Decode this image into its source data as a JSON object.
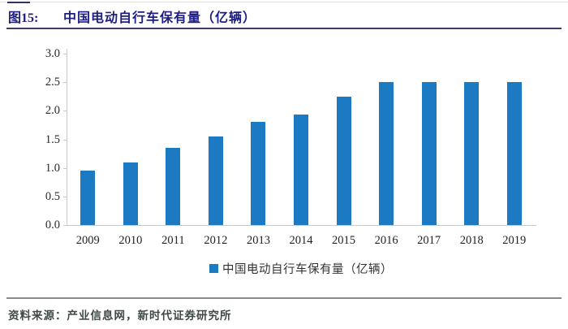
{
  "figure": {
    "label": "图15:",
    "title": "中国电动自行车保有量（亿辆）"
  },
  "chart_data": {
    "type": "bar",
    "title": "中国电动自行车保有量（亿辆）",
    "categories": [
      "2009",
      "2010",
      "2011",
      "2012",
      "2013",
      "2014",
      "2015",
      "2016",
      "2017",
      "2018",
      "2019"
    ],
    "values": [
      0.95,
      1.1,
      1.35,
      1.55,
      1.8,
      1.93,
      2.25,
      2.5,
      2.5,
      2.5,
      2.5
    ],
    "xlabel": "",
    "ylabel": "",
    "ylim": [
      0.0,
      3.0
    ],
    "ytick_step": 0.5,
    "ytick_labels": [
      "3.0",
      "2.5",
      "2.0",
      "1.5",
      "1.0",
      "0.5",
      "0.0"
    ],
    "grid": false,
    "legend_position": "bottom",
    "legend": [
      "中国电动自行车保有量（亿辆）"
    ]
  },
  "colors": {
    "bar": "#1b7ac2",
    "title_text": "#1d1d82",
    "axis_line": "#c9c9c9",
    "separator": "#8a8a8a"
  },
  "footer": {
    "source": "资料来源：产业信息网，新时代证券研究所"
  }
}
